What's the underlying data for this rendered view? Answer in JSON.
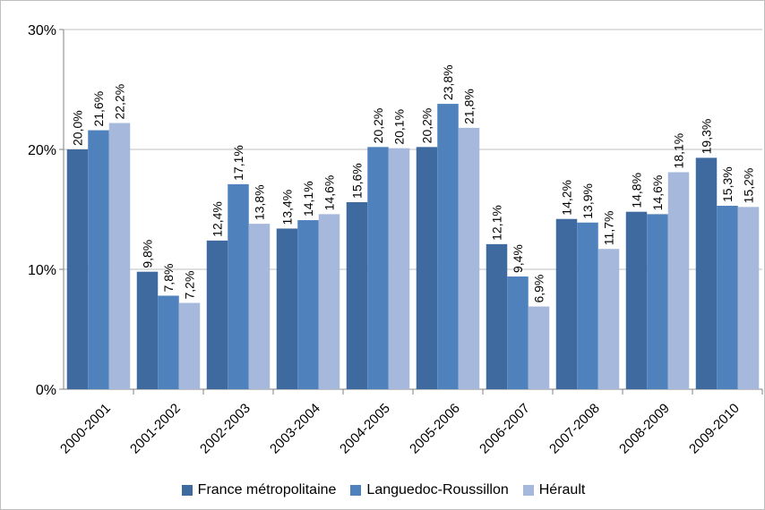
{
  "chart_data": {
    "type": "bar",
    "categories": [
      "2000-2001",
      "2001-2002",
      "2002-2003",
      "2003-2004",
      "2004-2005",
      "2005-2006",
      "2006-2007",
      "2007-2008",
      "2008-2009",
      "2009-2010"
    ],
    "series": [
      {
        "name": "France métropolitaine",
        "color": "#3f6aa0",
        "values": [
          20.0,
          9.8,
          12.4,
          13.4,
          15.6,
          20.2,
          12.1,
          14.2,
          14.8,
          19.3
        ],
        "labels": [
          "20,0%",
          "9,8%",
          "12,4%",
          "13,4%",
          "15,6%",
          "20,2%",
          "12,1%",
          "14,2%",
          "14,8%",
          "19,3%"
        ]
      },
      {
        "name": "Languedoc-Roussillon",
        "color": "#4f81bd",
        "values": [
          21.6,
          7.8,
          17.1,
          14.1,
          20.2,
          23.8,
          9.4,
          13.9,
          14.6,
          15.3
        ],
        "labels": [
          "21,6%",
          "7,8%",
          "17,1%",
          "14,1%",
          "20,2%",
          "23,8%",
          "9,4%",
          "13,9%",
          "14,6%",
          "15,3%"
        ]
      },
      {
        "name": "Hérault",
        "color": "#a6b9dc",
        "values": [
          22.2,
          7.2,
          13.8,
          14.6,
          20.1,
          21.8,
          6.9,
          11.7,
          18.1,
          15.2
        ],
        "labels": [
          "22,2%",
          "7,2%",
          "13,8%",
          "14,6%",
          "20,1%",
          "21,8%",
          "6,9%",
          "11,7%",
          "18,1%",
          "15,2%"
        ]
      }
    ],
    "y_ticks": [
      "0%",
      "10%",
      "20%",
      "30%"
    ],
    "ylim": [
      0,
      30
    ],
    "grid": true,
    "legend_position": "bottom",
    "title": "",
    "xlabel": "",
    "ylabel": ""
  }
}
